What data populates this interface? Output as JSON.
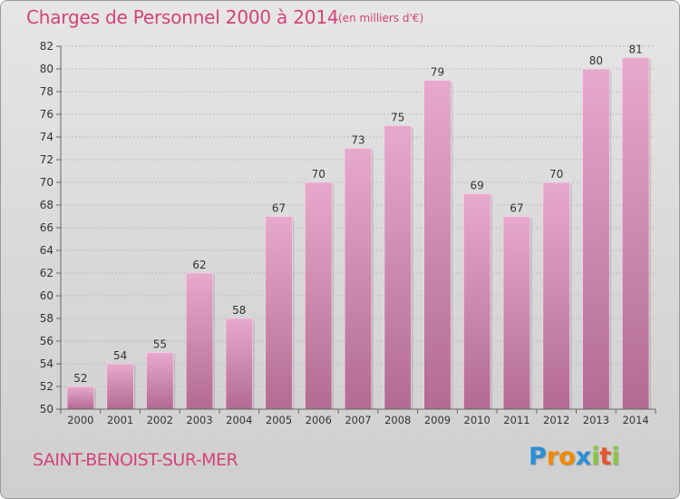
{
  "title": "Charges de Personnel 2000 à 2014",
  "unit_note": "(en milliers d'€)",
  "city": "SAINT-BENOIST-SUR-MER",
  "logo": {
    "letters": [
      "P",
      "r",
      "o",
      "x",
      "i",
      "t",
      "i"
    ],
    "colors": [
      "#2a8fd6",
      "#f08a00",
      "#f08a00",
      "#2a8fd6",
      "#8ac640",
      "#e9542a",
      "#8ac640"
    ]
  },
  "colors": {
    "bar_top": "#e7a9cc",
    "bar_bottom": "#b26b91",
    "axis_text": "#333333",
    "grid": "#bdbdbd"
  },
  "chart_data": {
    "type": "bar",
    "categories": [
      "2000",
      "2001",
      "2002",
      "2003",
      "2004",
      "2005",
      "2006",
      "2007",
      "2008",
      "2009",
      "2010",
      "2011",
      "2012",
      "2013",
      "2014"
    ],
    "values": [
      52,
      54,
      55,
      62,
      58,
      67,
      70,
      73,
      75,
      79,
      69,
      67,
      70,
      80,
      81
    ],
    "ylim": [
      50,
      82
    ],
    "yticks": [
      50,
      52,
      54,
      56,
      58,
      60,
      62,
      64,
      66,
      68,
      70,
      72,
      74,
      76,
      78,
      80,
      82
    ],
    "grid": true,
    "data_labels": true
  }
}
